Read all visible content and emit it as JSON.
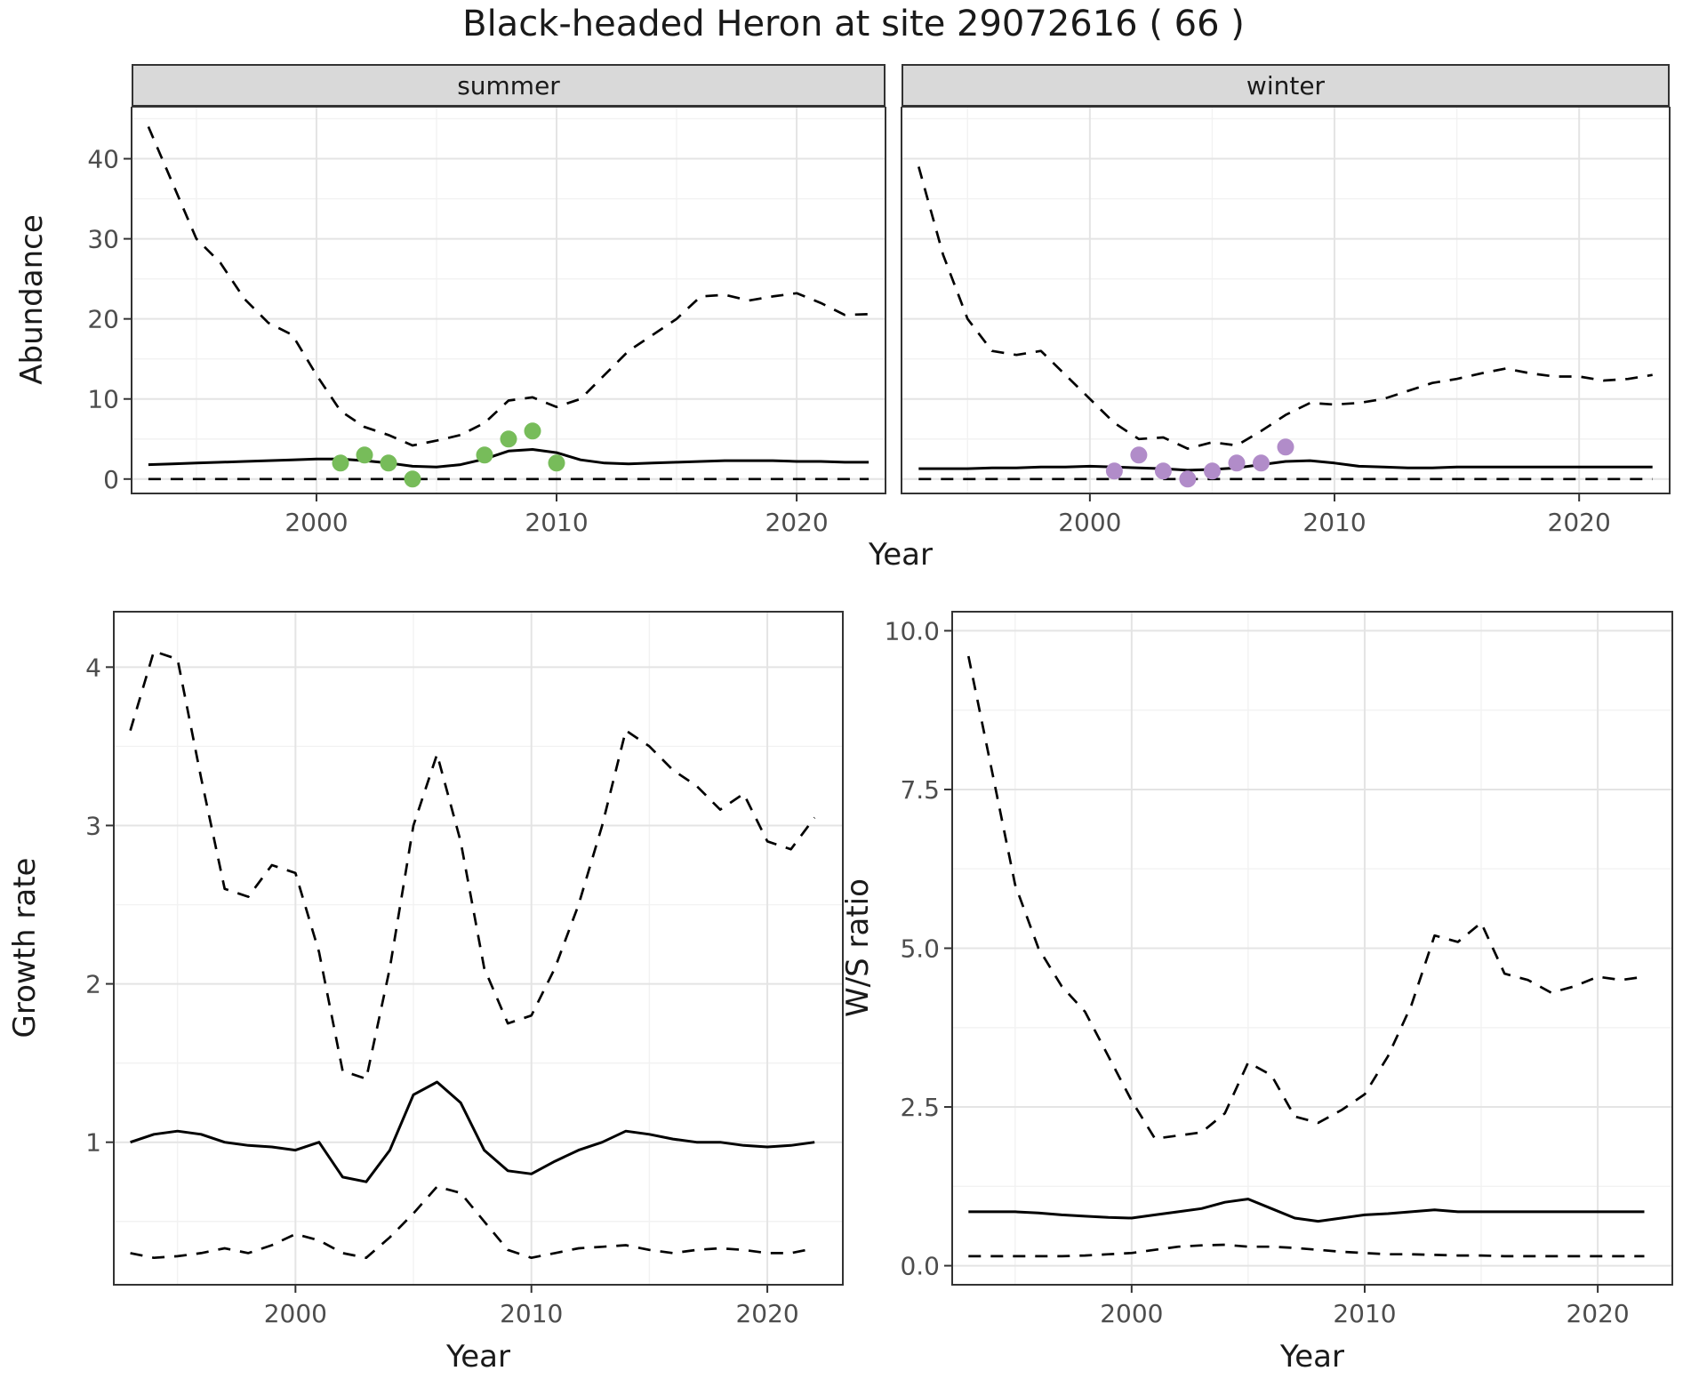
{
  "title": "Black-headed Heron at site 29072616 ( 66 )",
  "colors": {
    "line": "#000000",
    "grid_major": "#e4e4e4",
    "grid_minor": "#f2f2f2",
    "strip_bg": "#d9d9d9",
    "panel_border": "#333333",
    "tick": "#333333",
    "axis_text": "#4d4d4d",
    "summer_point": "#77bc5a",
    "winter_point": "#b18cc9"
  },
  "chart_data": [
    {
      "id": "abundance-summer",
      "type": "line",
      "facet_label": "summer",
      "ylabel": "Abundance",
      "xlabel": "Year",
      "x": [
        1993,
        1994,
        1995,
        1996,
        1997,
        1998,
        1999,
        2000,
        2001,
        2002,
        2003,
        2004,
        2005,
        2006,
        2007,
        2008,
        2009,
        2010,
        2011,
        2012,
        2013,
        2014,
        2015,
        2016,
        2017,
        2018,
        2019,
        2020,
        2021,
        2022,
        2023
      ],
      "series": [
        {
          "name": "upper_95ci",
          "style": "dashed",
          "values": [
            44,
            37,
            30,
            27,
            22.5,
            19.5,
            18,
            13,
            8.5,
            6.5,
            5.5,
            4.2,
            4.8,
            5.5,
            7,
            9.8,
            10.2,
            9,
            10,
            13,
            16,
            18,
            20,
            22.8,
            23,
            22.3,
            22.8,
            23.2,
            22,
            20.5,
            20.6
          ]
        },
        {
          "name": "median",
          "style": "solid",
          "values": [
            1.8,
            1.9,
            2.0,
            2.1,
            2.2,
            2.3,
            2.4,
            2.5,
            2.5,
            2.3,
            2.0,
            1.6,
            1.5,
            1.8,
            2.5,
            3.5,
            3.7,
            3.3,
            2.4,
            2.0,
            1.9,
            2.0,
            2.1,
            2.2,
            2.3,
            2.3,
            2.3,
            2.2,
            2.2,
            2.1,
            2.1
          ]
        },
        {
          "name": "lower_95ci",
          "style": "dashed",
          "values": [
            0,
            0,
            0,
            0,
            0,
            0,
            0,
            0,
            0,
            0,
            0,
            0,
            0,
            0,
            0,
            0,
            0,
            0,
            0,
            0,
            0,
            0,
            0,
            0,
            0,
            0,
            0,
            0,
            0,
            0,
            0
          ]
        }
      ],
      "points": {
        "name": "observed-counts",
        "color": "#77bc5a",
        "x": [
          2001,
          2002,
          2003,
          2004,
          2007,
          2008,
          2009,
          2010
        ],
        "y": [
          2,
          3,
          2,
          0,
          3,
          5,
          6,
          2
        ]
      },
      "xlim": [
        1992.3,
        2023.7
      ],
      "ylim": [
        -1.8,
        46.5
      ],
      "xticks": {
        "values": [
          2000,
          2010,
          2020
        ],
        "labels": [
          "2000",
          "2010",
          "2020"
        ]
      },
      "yticks": {
        "values": [
          0,
          10,
          20,
          30,
          40
        ],
        "labels": [
          "0",
          "10",
          "20",
          "30",
          "40"
        ]
      },
      "grid": true
    },
    {
      "id": "abundance-winter",
      "type": "line",
      "facet_label": "winter",
      "ylabel": "Abundance",
      "xlabel": "Year",
      "x": [
        1993,
        1994,
        1995,
        1996,
        1997,
        1998,
        1999,
        2000,
        2001,
        2002,
        2003,
        2004,
        2005,
        2006,
        2007,
        2008,
        2009,
        2010,
        2011,
        2012,
        2013,
        2014,
        2015,
        2016,
        2017,
        2018,
        2019,
        2020,
        2021,
        2022,
        2023
      ],
      "series": [
        {
          "name": "upper_95ci",
          "style": "dashed",
          "values": [
            39,
            28,
            20,
            16,
            15.5,
            16,
            13,
            10,
            7,
            5,
            5.2,
            3.8,
            4.6,
            4.2,
            6,
            8,
            9.5,
            9.3,
            9.5,
            10,
            11,
            12,
            12.5,
            13.2,
            13.8,
            13.2,
            12.8,
            12.8,
            12.3,
            12.5,
            13
          ]
        },
        {
          "name": "median",
          "style": "solid",
          "values": [
            1.3,
            1.3,
            1.3,
            1.4,
            1.4,
            1.5,
            1.5,
            1.6,
            1.5,
            1.4,
            1.3,
            1.1,
            1.2,
            1.4,
            1.8,
            2.2,
            2.3,
            2.0,
            1.6,
            1.5,
            1.4,
            1.4,
            1.5,
            1.5,
            1.5,
            1.5,
            1.5,
            1.5,
            1.5,
            1.5,
            1.5
          ]
        },
        {
          "name": "lower_95ci",
          "style": "dashed",
          "values": [
            0,
            0,
            0,
            0,
            0,
            0,
            0,
            0,
            0,
            0,
            0,
            0,
            0,
            0,
            0,
            0,
            0,
            0,
            0,
            0,
            0,
            0,
            0,
            0,
            0,
            0,
            0,
            0,
            0,
            0,
            0
          ]
        }
      ],
      "points": {
        "name": "observed-counts",
        "color": "#b18cc9",
        "x": [
          2001,
          2002,
          2003,
          2004,
          2005,
          2006,
          2007,
          2008
        ],
        "y": [
          1,
          3,
          1,
          0,
          1,
          2,
          2,
          4
        ]
      },
      "xlim": [
        1992.3,
        2023.7
      ],
      "ylim": [
        -1.8,
        46.5
      ],
      "xticks": {
        "values": [
          2000,
          2010,
          2020
        ],
        "labels": [
          "2000",
          "2010",
          "2020"
        ]
      },
      "yticks": {
        "values": [
          0,
          10,
          20,
          30,
          40
        ],
        "labels": [
          "0",
          "10",
          "20",
          "30",
          "40"
        ]
      },
      "grid": true
    },
    {
      "id": "growth-rate",
      "type": "line",
      "facet_label": "",
      "ylabel": "Growth rate",
      "xlabel": "Year",
      "x": [
        1993,
        1994,
        1995,
        1996,
        1997,
        1998,
        1999,
        2000,
        2001,
        2002,
        2003,
        2004,
        2005,
        2006,
        2007,
        2008,
        2009,
        2010,
        2011,
        2012,
        2013,
        2014,
        2015,
        2016,
        2017,
        2018,
        2019,
        2020,
        2021,
        2022
      ],
      "series": [
        {
          "name": "upper_95ci",
          "style": "dashed",
          "values": [
            3.6,
            4.1,
            4.05,
            3.3,
            2.6,
            2.55,
            2.75,
            2.7,
            2.2,
            1.45,
            1.4,
            2.1,
            3.0,
            3.45,
            2.9,
            2.1,
            1.75,
            1.8,
            2.1,
            2.5,
            3.0,
            3.6,
            3.5,
            3.35,
            3.25,
            3.1,
            3.2,
            2.9,
            2.85,
            3.05
          ]
        },
        {
          "name": "median",
          "style": "solid",
          "values": [
            1.0,
            1.05,
            1.07,
            1.05,
            1.0,
            0.98,
            0.97,
            0.95,
            1.0,
            0.78,
            0.75,
            0.95,
            1.3,
            1.38,
            1.25,
            0.95,
            0.82,
            0.8,
            0.88,
            0.95,
            1.0,
            1.07,
            1.05,
            1.02,
            1.0,
            1.0,
            0.98,
            0.97,
            0.98,
            1.0
          ]
        },
        {
          "name": "lower_95ci",
          "style": "dashed",
          "values": [
            0.3,
            0.27,
            0.28,
            0.3,
            0.33,
            0.3,
            0.35,
            0.42,
            0.38,
            0.3,
            0.27,
            0.4,
            0.55,
            0.72,
            0.68,
            0.5,
            0.32,
            0.27,
            0.3,
            0.33,
            0.34,
            0.35,
            0.32,
            0.3,
            0.32,
            0.33,
            0.32,
            0.3,
            0.3,
            0.33
          ]
        }
      ],
      "xlim": [
        1992.3,
        2023.2
      ],
      "ylim": [
        0.1,
        4.35
      ],
      "xticks": {
        "values": [
          2000,
          2010,
          2020
        ],
        "labels": [
          "2000",
          "2010",
          "2020"
        ]
      },
      "yticks": {
        "values": [
          1,
          2,
          3,
          4
        ],
        "labels": [
          "1",
          "2",
          "3",
          "4"
        ]
      },
      "grid": true
    },
    {
      "id": "ws-ratio",
      "type": "line",
      "facet_label": "",
      "ylabel": "W/S ratio",
      "xlabel": "Year",
      "x": [
        1993,
        1994,
        1995,
        1996,
        1997,
        1998,
        1999,
        2000,
        2001,
        2002,
        2003,
        2004,
        2005,
        2006,
        2007,
        2008,
        2009,
        2010,
        2011,
        2012,
        2013,
        2014,
        2015,
        2016,
        2017,
        2018,
        2019,
        2020,
        2021,
        2022
      ],
      "series": [
        {
          "name": "upper_95ci",
          "style": "dashed",
          "values": [
            9.6,
            7.8,
            6.0,
            5.0,
            4.4,
            4.0,
            3.3,
            2.6,
            2.0,
            2.05,
            2.1,
            2.4,
            3.2,
            3.0,
            2.35,
            2.25,
            2.45,
            2.7,
            3.3,
            4.1,
            5.2,
            5.1,
            5.4,
            4.6,
            4.5,
            4.3,
            4.4,
            4.55,
            4.5,
            4.55
          ]
        },
        {
          "name": "median",
          "style": "solid",
          "values": [
            0.85,
            0.85,
            0.85,
            0.83,
            0.8,
            0.78,
            0.76,
            0.75,
            0.8,
            0.85,
            0.9,
            1.0,
            1.05,
            0.9,
            0.75,
            0.7,
            0.75,
            0.8,
            0.82,
            0.85,
            0.88,
            0.85,
            0.85,
            0.85,
            0.85,
            0.85,
            0.85,
            0.85,
            0.85,
            0.85
          ]
        },
        {
          "name": "lower_95ci",
          "style": "dashed",
          "values": [
            0.15,
            0.15,
            0.15,
            0.15,
            0.15,
            0.16,
            0.18,
            0.2,
            0.25,
            0.3,
            0.32,
            0.33,
            0.3,
            0.3,
            0.28,
            0.25,
            0.22,
            0.2,
            0.18,
            0.18,
            0.17,
            0.16,
            0.16,
            0.15,
            0.15,
            0.15,
            0.15,
            0.15,
            0.15,
            0.15
          ]
        }
      ],
      "xlim": [
        1992.3,
        2023.2
      ],
      "ylim": [
        -0.3,
        10.3
      ],
      "xticks": {
        "values": [
          2000,
          2010,
          2020
        ],
        "labels": [
          "2000",
          "2010",
          "2020"
        ]
      },
      "yticks": {
        "values": [
          0,
          2.5,
          5,
          7.5,
          10
        ],
        "labels": [
          "0.0",
          "2.5",
          "5.0",
          "7.5",
          "10.0"
        ]
      },
      "grid": true
    }
  ]
}
